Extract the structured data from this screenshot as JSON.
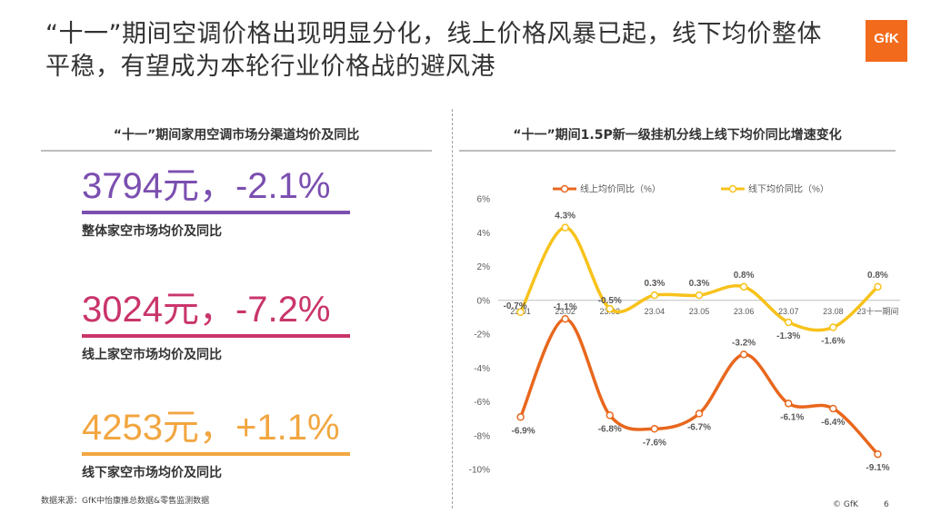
{
  "header": {
    "title": "“十一”期间空调价格出现明显分化，线上价格风暴已起，线下均价整体平稳，有望成为本轮行业价格战的避风港",
    "logo_text": "GfK"
  },
  "left_panel": {
    "heading": "“十一”期间家用空调市场分渠道均价及同比",
    "stats": [
      {
        "value_text": "3794元，-2.1%",
        "label": "整体家空市场均价及同比",
        "color": "#7b4fb0"
      },
      {
        "value_text": "3024元，-7.2%",
        "label": "线上家空市场均价及同比",
        "color": "#c9356b"
      },
      {
        "value_text": "4253元，+1.1%",
        "label": "线下家空市场均价及同比",
        "color": "#f2a640"
      }
    ]
  },
  "right_panel": {
    "heading": "“十一”期间1.5P新一级挂机分线上线下均价同比增速变化"
  },
  "chart_data": {
    "type": "line",
    "categories": [
      "23.01",
      "23.02",
      "23.03",
      "23.04",
      "23.05",
      "23.06",
      "23.07",
      "23.08",
      "23十一期间"
    ],
    "series": [
      {
        "name": "线上均价同比（%）",
        "color": "#e8671d",
        "values": [
          -6.9,
          -1.1,
          -6.8,
          -7.6,
          -6.7,
          -3.2,
          -6.1,
          -6.4,
          -9.1
        ],
        "labels": [
          "-6.9%",
          "-1.1%",
          "-6.8%",
          "-7.6%",
          "-6.7%",
          "-3.2%",
          "-6.1%",
          "-6.4%",
          "-9.1%"
        ]
      },
      {
        "name": "线下均价同比（%）",
        "color": "#f7c21b",
        "values": [
          -0.7,
          4.3,
          -0.5,
          0.3,
          0.3,
          0.8,
          -1.3,
          -1.6,
          0.8
        ],
        "labels": [
          "-0.7%",
          "4.3%",
          "-0.5%",
          "0.3%",
          "0.3%",
          "0.8%",
          "-1.3%",
          "-1.6%",
          "0.8%"
        ]
      }
    ],
    "ylim": [
      -10,
      6
    ],
    "yticks": [
      6,
      4,
      2,
      0,
      -2,
      -4,
      -6,
      -8,
      -10
    ],
    "ytick_labels": [
      "6%",
      "4%",
      "2%",
      "0%",
      "-2%",
      "-4%",
      "-6%",
      "-8%",
      "-10%"
    ],
    "legend_position": "top",
    "grid": false
  },
  "footer": {
    "source": "数据来源：GfK中怡康推总数据&零售监测数据",
    "copyright": "© GfK",
    "page": "6"
  }
}
